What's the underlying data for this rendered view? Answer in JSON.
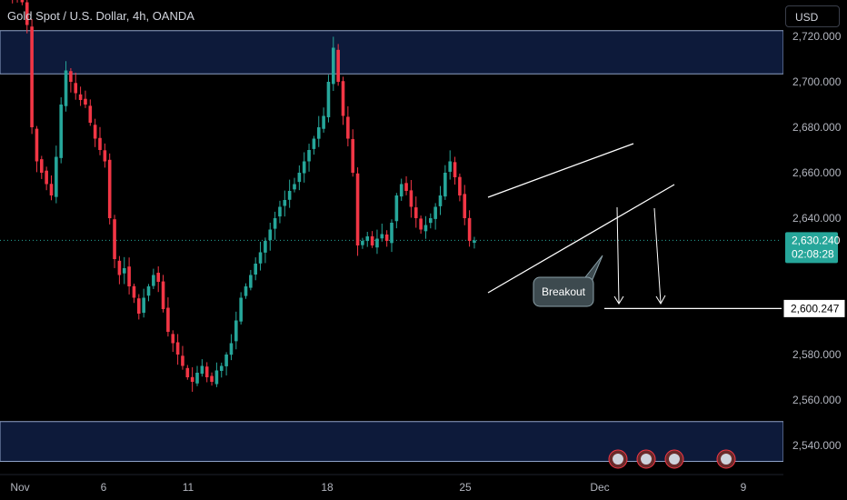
{
  "header": {
    "symbol_title": "Gold Spot / U.S. Dollar, 4h, OANDA",
    "currency_button": "USD"
  },
  "colors": {
    "background": "#000000",
    "bull": "#26a69a",
    "bear": "#f23645",
    "zone_fill": "#0d1a3a",
    "zone_border": "#8fa3c8",
    "price_label_bg": "#26a69a",
    "annotation_line": "#ffffff"
  },
  "chart_data": {
    "type": "candlestick",
    "title": "Gold Spot / U.S. Dollar, 4h, OANDA",
    "ylim": [
      2528,
      2736
    ],
    "y_ticks": [
      "2,720.000",
      "2,700.000",
      "2,680.000",
      "2,660.000",
      "2,640.000",
      "2,580.000",
      "2,560.000",
      "2,540.000"
    ],
    "x_ticks": [
      "Nov",
      "6",
      "11",
      "18",
      "25",
      "Dec",
      "9"
    ],
    "x_dates": [
      "Nov",
      "Nov 6",
      "Nov 11",
      "Nov 18",
      "Nov 25",
      "Dec",
      "Dec 9"
    ],
    "last_price": "2,630.240",
    "countdown": "02:08:28",
    "target_price": "2,600.247",
    "target_value": 2600.247,
    "zones": [
      {
        "from": 2703.5,
        "to": 2722.5
      },
      {
        "from": 2533,
        "to": 2550.5
      }
    ],
    "annotation": {
      "text": "Breakout"
    },
    "closes": [
      2745,
      2742,
      2739,
      2737,
      2735,
      2725,
      2680,
      2665,
      2660,
      2655,
      2650,
      2667,
      2690,
      2705,
      2700,
      2695,
      2692,
      2690,
      2682,
      2675,
      2670,
      2665,
      2640,
      2622,
      2615,
      2618,
      2610,
      2605,
      2598,
      2605,
      2610,
      2615,
      2612,
      2600,
      2590,
      2585,
      2580,
      2575,
      2570,
      2568,
      2572,
      2575,
      2570,
      2568,
      2573,
      2575,
      2580,
      2585,
      2595,
      2605,
      2610,
      2615,
      2620,
      2625,
      2630,
      2635,
      2640,
      2645,
      2648,
      2652,
      2655,
      2660,
      2665,
      2670,
      2675,
      2680,
      2685,
      2700,
      2715,
      2700,
      2685,
      2675,
      2660,
      2628,
      2630,
      2632,
      2628,
      2631,
      2633,
      2630,
      2638,
      2650,
      2655,
      2652,
      2645,
      2640,
      2635,
      2637,
      2640,
      2645,
      2650,
      2660,
      2665,
      2658,
      2650,
      2640,
      2630,
      2630.24
    ]
  }
}
